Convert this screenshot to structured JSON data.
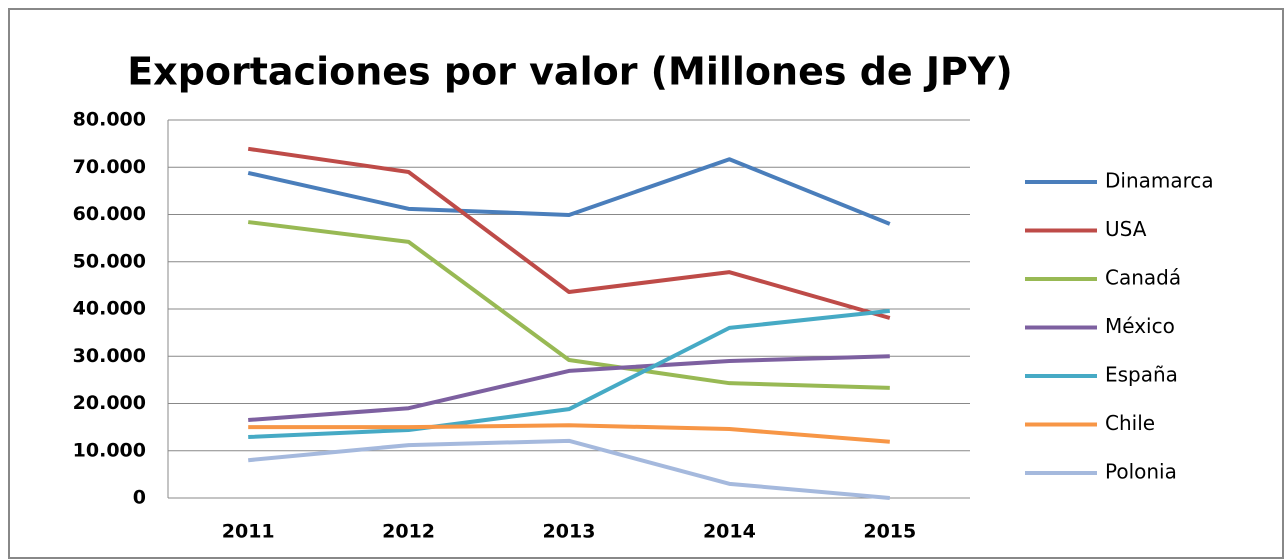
{
  "chart_data": {
    "type": "line",
    "title": "Exportaciones por valor (Millones de JPY)",
    "categories": [
      "2011",
      "2012",
      "2013",
      "2014",
      "2015"
    ],
    "series": [
      {
        "name": "Dinamarca",
        "color": "#4a7ebb",
        "values": [
          68800,
          61200,
          59900,
          71700,
          58000
        ]
      },
      {
        "name": "USA",
        "color": "#be4b48",
        "values": [
          73900,
          69000,
          43600,
          47800,
          38100
        ]
      },
      {
        "name": "Canadá",
        "color": "#98b954",
        "values": [
          58400,
          54200,
          29200,
          24300,
          23300
        ]
      },
      {
        "name": "México",
        "color": "#7d60a0",
        "values": [
          16500,
          19000,
          26900,
          29000,
          30000
        ]
      },
      {
        "name": "España",
        "color": "#46aac5",
        "values": [
          12900,
          14400,
          18800,
          36000,
          39600
        ]
      },
      {
        "name": "Chile",
        "color": "#f79646",
        "values": [
          15000,
          15000,
          15400,
          14600,
          11900
        ]
      },
      {
        "name": "Polonia",
        "color": "#a5b9dd",
        "values": [
          8000,
          11200,
          12100,
          3000,
          0
        ]
      }
    ],
    "ylim": [
      0,
      80000
    ],
    "yticks": [
      0,
      {
        "value": 10000,
        "label": "10.000"
      },
      {
        "value": 20000,
        "label": "20.000"
      },
      {
        "value": 30000,
        "label": "30.000"
      },
      {
        "value": 40000,
        "label": "40.000"
      },
      {
        "value": 50000,
        "label": "50.000"
      },
      {
        "value": 60000,
        "label": "60.000"
      },
      {
        "value": 70000,
        "label": "70.000"
      },
      {
        "value": 80000,
        "label": "80.000"
      }
    ],
    "grid": true,
    "legend": "right"
  }
}
